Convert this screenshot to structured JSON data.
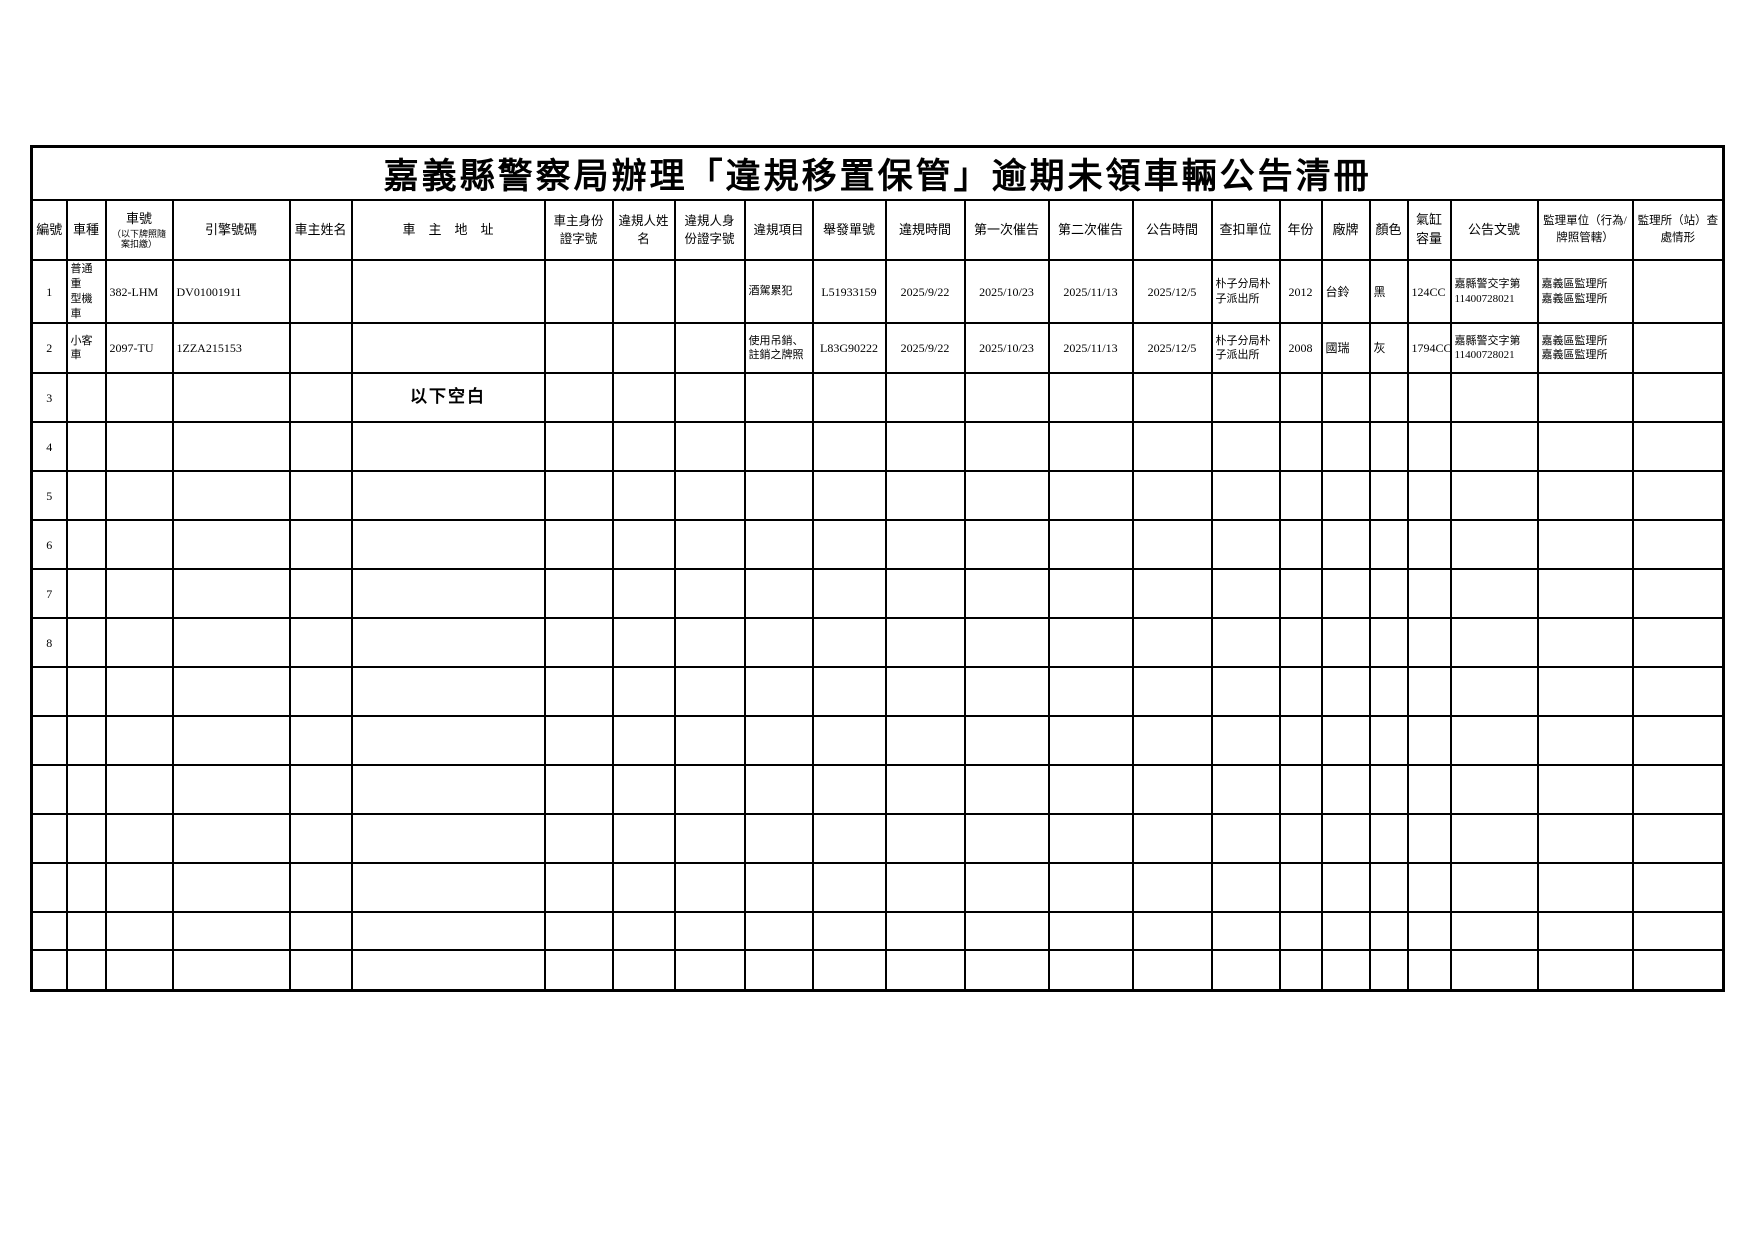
{
  "title": "嘉義縣警察局辦理「違規移置保管」逾期未領車輛公告清冊",
  "columns": [
    {
      "key": "no",
      "label": "編號"
    },
    {
      "key": "vehicle-type",
      "label": "車種"
    },
    {
      "key": "plate-no",
      "label": "車號",
      "sub": "（以下牌照隨案扣繳）"
    },
    {
      "key": "engine-no",
      "label": "引擎號碼"
    },
    {
      "key": "owner-name",
      "label": "車主姓名"
    },
    {
      "key": "owner-address",
      "label": "車　主　地　址"
    },
    {
      "key": "owner-id",
      "label": "車主身份證字號"
    },
    {
      "key": "violator-name",
      "label": "違規人姓名"
    },
    {
      "key": "violator-id",
      "label": "違規人身份證字號"
    },
    {
      "key": "violation-item",
      "label": "違規項目"
    },
    {
      "key": "citation-no",
      "label": "舉發單號"
    },
    {
      "key": "violation-time",
      "label": "違規時間"
    },
    {
      "key": "first-notice",
      "label": "第一次催告"
    },
    {
      "key": "second-notice",
      "label": "第二次催告"
    },
    {
      "key": "announce-time",
      "label": "公告時間"
    },
    {
      "key": "seizure-unit",
      "label": "查扣單位"
    },
    {
      "key": "year",
      "label": "年份"
    },
    {
      "key": "brand",
      "label": "廠牌"
    },
    {
      "key": "color",
      "label": "顏色"
    },
    {
      "key": "displacement",
      "label": "氣缸容量"
    },
    {
      "key": "announce-doc-no",
      "label": "公告文號"
    },
    {
      "key": "reg-unit",
      "label": "監理單位（行為/牌照管轄）"
    },
    {
      "key": "reg-station-status",
      "label": "監理所（站）查處情形"
    }
  ],
  "left_aligned_columns": [
    1,
    2,
    3,
    9,
    15,
    17,
    18,
    19,
    20,
    21
  ],
  "rows": [
    {
      "cells": [
        "1",
        "普通重\n型機車",
        "382-LHM",
        "DV01001911",
        "",
        "",
        "",
        "",
        "",
        "酒駕累犯",
        "L51933159",
        "2025/9/22",
        "2025/10/23",
        "2025/11/13",
        "2025/12/5",
        "朴子分局朴\n子派出所",
        "2012",
        "台鈴",
        "黑",
        "124CC",
        "嘉縣警交字第\n11400728021",
        "嘉義區監理所\n嘉義區監理所",
        ""
      ]
    },
    {
      "cells": [
        "2",
        "小客車",
        "2097-TU",
        "1ZZA215153",
        "",
        "",
        "",
        "",
        "",
        "使用吊銷、\n註銷之牌照",
        "L83G90222",
        "2025/9/22",
        "2025/10/23",
        "2025/11/13",
        "2025/12/5",
        "朴子分局朴\n子派出所",
        "2008",
        "國瑞",
        "灰",
        "1794CC",
        "嘉縣警交字第\n11400728021",
        "嘉義區監理所\n嘉義區監理所",
        ""
      ]
    },
    {
      "cells": [
        "3",
        "",
        "",
        "",
        "",
        "以下空白",
        "",
        "",
        "",
        "",
        "",
        "",
        "",
        "",
        "",
        "",
        "",
        "",
        "",
        "",
        "",
        "",
        ""
      ],
      "emphasis": 5
    },
    {
      "cells": [
        "4",
        "",
        "",
        "",
        "",
        "",
        "",
        "",
        "",
        "",
        "",
        "",
        "",
        "",
        "",
        "",
        "",
        "",
        "",
        "",
        "",
        "",
        ""
      ]
    },
    {
      "cells": [
        "5",
        "",
        "",
        "",
        "",
        "",
        "",
        "",
        "",
        "",
        "",
        "",
        "",
        "",
        "",
        "",
        "",
        "",
        "",
        "",
        "",
        "",
        ""
      ]
    },
    {
      "cells": [
        "6",
        "",
        "",
        "",
        "",
        "",
        "",
        "",
        "",
        "",
        "",
        "",
        "",
        "",
        "",
        "",
        "",
        "",
        "",
        "",
        "",
        "",
        ""
      ]
    },
    {
      "cells": [
        "7",
        "",
        "",
        "",
        "",
        "",
        "",
        "",
        "",
        "",
        "",
        "",
        "",
        "",
        "",
        "",
        "",
        "",
        "",
        "",
        "",
        "",
        ""
      ]
    },
    {
      "cells": [
        "8",
        "",
        "",
        "",
        "",
        "",
        "",
        "",
        "",
        "",
        "",
        "",
        "",
        "",
        "",
        "",
        "",
        "",
        "",
        "",
        "",
        "",
        ""
      ]
    },
    {
      "cells": [
        "",
        "",
        "",
        "",
        "",
        "",
        "",
        "",
        "",
        "",
        "",
        "",
        "",
        "",
        "",
        "",
        "",
        "",
        "",
        "",
        "",
        "",
        ""
      ]
    },
    {
      "cells": [
        "",
        "",
        "",
        "",
        "",
        "",
        "",
        "",
        "",
        "",
        "",
        "",
        "",
        "",
        "",
        "",
        "",
        "",
        "",
        "",
        "",
        "",
        ""
      ]
    },
    {
      "cells": [
        "",
        "",
        "",
        "",
        "",
        "",
        "",
        "",
        "",
        "",
        "",
        "",
        "",
        "",
        "",
        "",
        "",
        "",
        "",
        "",
        "",
        "",
        ""
      ]
    },
    {
      "cells": [
        "",
        "",
        "",
        "",
        "",
        "",
        "",
        "",
        "",
        "",
        "",
        "",
        "",
        "",
        "",
        "",
        "",
        "",
        "",
        "",
        "",
        "",
        ""
      ]
    },
    {
      "cells": [
        "",
        "",
        "",
        "",
        "",
        "",
        "",
        "",
        "",
        "",
        "",
        "",
        "",
        "",
        "",
        "",
        "",
        "",
        "",
        "",
        "",
        "",
        ""
      ]
    },
    {
      "cells": [
        "",
        "",
        "",
        "",
        "",
        "",
        "",
        "",
        "",
        "",
        "",
        "",
        "",
        "",
        "",
        "",
        "",
        "",
        "",
        "",
        "",
        "",
        ""
      ]
    },
    {
      "cells": [
        "",
        "",
        "",
        "",
        "",
        "",
        "",
        "",
        "",
        "",
        "",
        "",
        "",
        "",
        "",
        "",
        "",
        "",
        "",
        "",
        "",
        "",
        ""
      ]
    }
  ]
}
